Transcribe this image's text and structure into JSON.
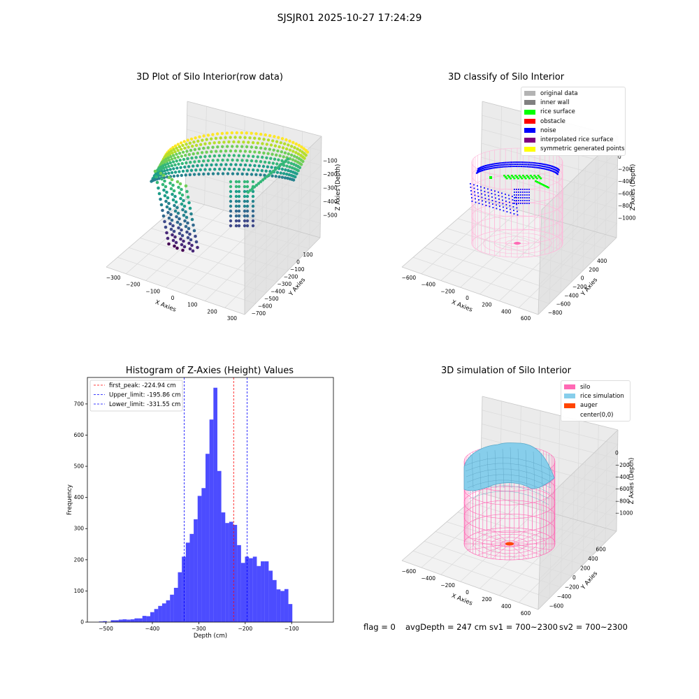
{
  "figure_title": "SJSJR01 2025-10-27 17:24:29",
  "status": {
    "flag": "flag = 0",
    "avg_depth": "avgDepth = 247 cm",
    "sv1": "sv1 = 700~2300",
    "sv2": "sv2 = 700~2300"
  },
  "plot_raw": {
    "title": "3D Plot of Silo Interior(row data)",
    "xlabel": "X Axies",
    "ylabel": "Y Axies",
    "zlabel": "Z Axies (Depth)",
    "x_ticks": [
      "−300",
      "−200",
      "−100",
      "0",
      "100",
      "200",
      "300"
    ],
    "y_ticks": [
      "100",
      "0",
      "−100",
      "−200",
      "−300",
      "−400",
      "−500",
      "−600",
      "−700"
    ],
    "z_ticks": [
      "−100",
      "−200",
      "−300",
      "−400",
      "−500"
    ]
  },
  "plot_classify": {
    "title": "3D classify of Silo Interior",
    "xlabel": "X Axies",
    "ylabel": "Y Axies",
    "zlabel": "Z Axies (Depth)",
    "x_ticks": [
      "−600",
      "−400",
      "−200",
      "0",
      "200",
      "400",
      "600"
    ],
    "y_ticks": [
      "400",
      "200",
      "0",
      "−200",
      "−400",
      "−600",
      "−800"
    ],
    "z_ticks": [
      "0",
      "−200",
      "−400",
      "−600",
      "−800",
      "−1000"
    ],
    "legend": [
      {
        "label": "original data",
        "color": "#b3b3b3"
      },
      {
        "label": "inner wall",
        "color": "#808080"
      },
      {
        "label": "rice surface",
        "color": "#00ff00"
      },
      {
        "label": "obstacle",
        "color": "#ff0000"
      },
      {
        "label": "noise",
        "color": "#0000ff"
      },
      {
        "label": "interpolated rice surface",
        "color": "#800080"
      },
      {
        "label": "symmetric generated points",
        "color": "#ffff00"
      }
    ]
  },
  "plot_sim": {
    "title": "3D simulation of Silo Interior",
    "xlabel": "X Axies",
    "ylabel": "Y Axies",
    "zlabel": "Z Axies (Depth)",
    "x_ticks": [
      "−600",
      "−400",
      "−200",
      "0",
      "200",
      "400",
      "600"
    ],
    "y_ticks": [
      "600",
      "400",
      "200",
      "0",
      "−200",
      "−400",
      "−600"
    ],
    "z_ticks": [
      "0",
      "−200",
      "−400",
      "−600",
      "−800",
      "−1000"
    ],
    "legend": [
      {
        "label": "silo",
        "color": "#ff69b4"
      },
      {
        "label": "rice simulation",
        "color": "#87ceeb"
      },
      {
        "label": "auger",
        "color": "#ff4500"
      },
      {
        "label": "center(0,0)",
        "color": "#ffffff"
      }
    ]
  },
  "chart_data": {
    "type": "bar",
    "title": "Histogram of Z-Axies (Height) Values",
    "xlabel": "Depth (cm)",
    "ylabel": "Frequency",
    "xlim": [
      -540,
      -10
    ],
    "ylim": [
      0,
      785
    ],
    "x_ticks": [
      -500,
      -400,
      -300,
      -200,
      -100
    ],
    "x_tick_labels": [
      "−500",
      "−400",
      "−300",
      "−200",
      "−100"
    ],
    "y_ticks": [
      0,
      100,
      200,
      300,
      400,
      500,
      600,
      700
    ],
    "bin_start": -515,
    "bin_width": 8.5,
    "values": [
      2,
      3,
      0,
      6,
      6,
      8,
      9,
      8,
      9,
      12,
      12,
      20,
      19,
      32,
      42,
      52,
      60,
      70,
      88,
      110,
      160,
      210,
      255,
      283,
      330,
      405,
      430,
      540,
      650,
      752,
      485,
      352,
      318,
      322,
      312,
      247,
      190,
      210,
      205,
      210,
      180,
      195,
      195,
      165,
      135,
      105,
      100,
      106,
      58
    ],
    "lines": [
      {
        "label": "first_peak: -224.94 cm",
        "x": -224.94,
        "color": "#ff0000"
      },
      {
        "label": "Upper_limit: -195.86 cm",
        "x": -195.86,
        "color": "#0000ff"
      },
      {
        "label": "Lower_limit: -331.55 cm",
        "x": -331.55,
        "color": "#0000ff"
      }
    ],
    "bar_color": "#0000ff",
    "legend_position": "upper left"
  }
}
